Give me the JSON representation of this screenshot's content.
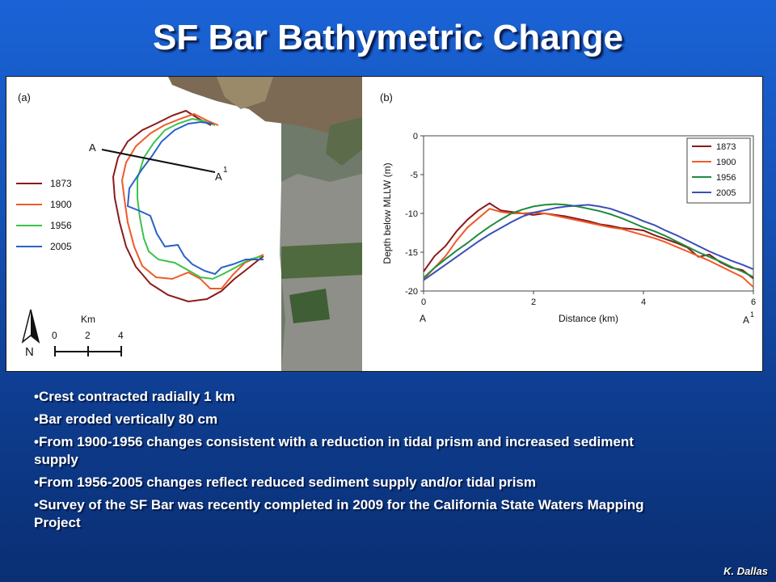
{
  "slide": {
    "title": "SF Bar Bathymetric Change",
    "credit": "K. Dallas"
  },
  "panel_a": {
    "label": "(a)",
    "transect_start": "A",
    "transect_end": "A",
    "transect_end_sup": "1",
    "legend": [
      {
        "name": "1873",
        "color": "#8b1a1a"
      },
      {
        "name": "1900",
        "color": "#f05a28"
      },
      {
        "name": "1956",
        "color": "#3cc24a"
      },
      {
        "name": "2005",
        "color": "#2a62c8"
      }
    ],
    "north_label": "N",
    "scale_unit": "Km",
    "scale_ticks": [
      "0",
      "2",
      "4"
    ]
  },
  "chart_data": {
    "type": "line",
    "label": "(b)",
    "xlabel": "Distance (km)",
    "ylabel": "Depth below MLLW (m)",
    "xlim": [
      0,
      6
    ],
    "ylim": [
      -20,
      0
    ],
    "xticks": [
      "0",
      "2",
      "4",
      "6"
    ],
    "yticks": [
      "0",
      "-5",
      "-10",
      "-15",
      "-20"
    ],
    "x_start_label": "A",
    "x_end_label": "A",
    "x_end_label_sup": "1",
    "legend_position": "top-right",
    "grid": false,
    "series": [
      {
        "name": "1873",
        "color": "#8b1a1a",
        "x": [
          0,
          0.2,
          0.4,
          0.6,
          0.8,
          1.0,
          1.2,
          1.4,
          1.6,
          1.8,
          2.0,
          2.2,
          2.4,
          2.6,
          2.8,
          3.0,
          3.2,
          3.4,
          3.6,
          3.8,
          4.0,
          4.2,
          4.4,
          4.6,
          4.8,
          5.0,
          5.2,
          5.4,
          5.6,
          5.8,
          6.0
        ],
        "y": [
          -17.5,
          -15.5,
          -14.2,
          -12.3,
          -10.8,
          -9.6,
          -8.7,
          -9.6,
          -9.8,
          -10.0,
          -10.2,
          -10.0,
          -10.2,
          -10.4,
          -10.7,
          -11.0,
          -11.4,
          -11.6,
          -11.9,
          -12.0,
          -12.2,
          -12.8,
          -13.3,
          -13.8,
          -14.4,
          -15.6,
          -15.3,
          -16.3,
          -17.0,
          -17.3,
          -18.4
        ]
      },
      {
        "name": "1900",
        "color": "#f05a28",
        "x": [
          0,
          0.2,
          0.4,
          0.6,
          0.8,
          1.0,
          1.2,
          1.4,
          1.6,
          1.8,
          2.0,
          2.2,
          2.4,
          2.6,
          2.8,
          3.0,
          3.2,
          3.4,
          3.6,
          3.8,
          4.0,
          4.2,
          4.4,
          4.6,
          4.8,
          5.0,
          5.2,
          5.4,
          5.6,
          5.8,
          6.0
        ],
        "y": [
          -18.5,
          -17.0,
          -15.5,
          -13.5,
          -11.8,
          -10.6,
          -9.4,
          -9.8,
          -10.0,
          -10.0,
          -9.9,
          -10.0,
          -10.3,
          -10.6,
          -10.9,
          -11.2,
          -11.5,
          -11.8,
          -12.0,
          -12.4,
          -12.8,
          -13.2,
          -13.7,
          -14.3,
          -14.9,
          -15.5,
          -16.1,
          -16.8,
          -17.5,
          -18.2,
          -19.5
        ]
      },
      {
        "name": "1956",
        "color": "#1f8c3c",
        "x": [
          0,
          0.2,
          0.4,
          0.6,
          0.8,
          1.0,
          1.2,
          1.4,
          1.6,
          1.8,
          2.0,
          2.2,
          2.4,
          2.6,
          2.8,
          3.0,
          3.2,
          3.4,
          3.6,
          3.8,
          4.0,
          4.2,
          4.4,
          4.6,
          4.8,
          5.0,
          5.2,
          5.4,
          5.6,
          5.8,
          6.0
        ],
        "y": [
          -18.3,
          -17.0,
          -15.9,
          -14.8,
          -13.8,
          -12.7,
          -11.7,
          -10.8,
          -10.0,
          -9.5,
          -9.1,
          -8.9,
          -8.8,
          -8.9,
          -9.1,
          -9.4,
          -9.7,
          -10.1,
          -10.6,
          -11.2,
          -11.8,
          -12.3,
          -12.9,
          -13.6,
          -14.3,
          -15.0,
          -15.6,
          -16.2,
          -16.9,
          -17.5,
          -18.2
        ]
      },
      {
        "name": "2005",
        "color": "#3b4fb8",
        "x": [
          0,
          0.2,
          0.4,
          0.6,
          0.8,
          1.0,
          1.2,
          1.4,
          1.6,
          1.8,
          2.0,
          2.2,
          2.4,
          2.6,
          2.8,
          3.0,
          3.2,
          3.4,
          3.6,
          3.8,
          4.0,
          4.2,
          4.4,
          4.6,
          4.8,
          5.0,
          5.2,
          5.4,
          5.6,
          5.8,
          6.0
        ],
        "y": [
          -18.6,
          -17.6,
          -16.6,
          -15.6,
          -14.6,
          -13.6,
          -12.7,
          -11.9,
          -11.1,
          -10.4,
          -9.9,
          -9.6,
          -9.3,
          -9.1,
          -9.0,
          -8.9,
          -9.1,
          -9.4,
          -9.9,
          -10.4,
          -11.0,
          -11.5,
          -12.2,
          -12.8,
          -13.5,
          -14.2,
          -14.9,
          -15.5,
          -16.1,
          -16.6,
          -17.2
        ]
      }
    ]
  },
  "bullets": [
    "•Crest contracted radially 1 km",
    "•Bar eroded vertically 80 cm",
    "•From 1900-1956 changes consistent with a reduction in tidal prism and increased sediment supply",
    "•From 1956-2005 changes reflect reduced sediment supply and/or tidal prism",
    "•Survey of the SF Bar was recently completed in 2009 for the California State Waters Mapping Project"
  ]
}
